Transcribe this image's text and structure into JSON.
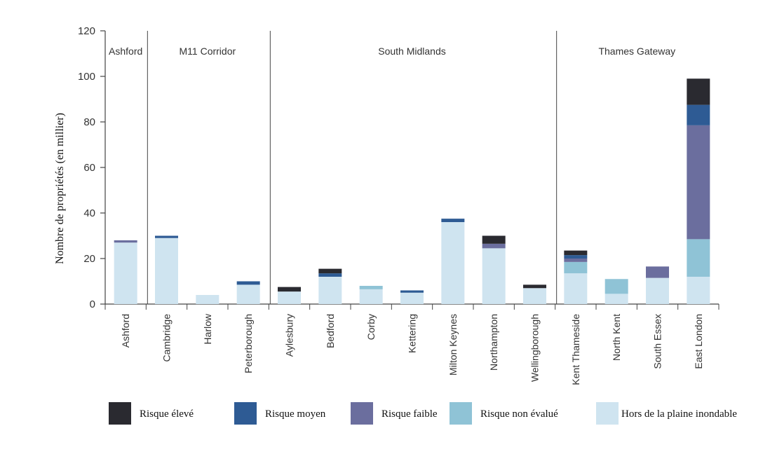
{
  "chart_data": {
    "type": "bar",
    "stacked": true,
    "ylabel": "Nombre de propriétés (en millier)",
    "xlabel": "",
    "ylim": [
      0,
      120
    ],
    "yticks": [
      0,
      20,
      40,
      60,
      80,
      100,
      120
    ],
    "grid": false,
    "legend_position": "bottom",
    "categories": [
      "Ashford",
      "Cambridge",
      "Harlow",
      "Peterborough",
      "Aylesbury",
      "Bedford",
      "Corby",
      "Kettering",
      "Milton Keynes",
      "Northampton",
      "Wellingborough",
      "Kent Thameside",
      "North Kent",
      "South Essex",
      "East London"
    ],
    "groups": [
      {
        "label": "Ashford",
        "start": 0,
        "end": 0
      },
      {
        "label": "M11 Corridor",
        "start": 1,
        "end": 3
      },
      {
        "label": "South Midlands",
        "start": 4,
        "end": 10
      },
      {
        "label": "Thames Gateway",
        "start": 11,
        "end": 14
      }
    ],
    "series": [
      {
        "name": "Hors de la plaine inondable",
        "color": "#cfe4f0",
        "values": [
          27,
          29,
          4,
          8.5,
          5.5,
          12,
          6.5,
          5,
          36,
          24.5,
          7,
          13.5,
          4.5,
          11.5,
          12
        ]
      },
      {
        "name": "Risque non évalué",
        "color": "#8fc3d6",
        "values": [
          0,
          0,
          0,
          0,
          0,
          0,
          1.5,
          0,
          0,
          0,
          0,
          5,
          6.5,
          0,
          16.5
        ]
      },
      {
        "name": "Risque faible",
        "color": "#6b6e9e",
        "values": [
          1,
          0,
          0,
          0,
          0,
          0,
          0,
          0,
          0,
          2,
          0,
          1.5,
          0,
          5,
          50
        ]
      },
      {
        "name": "Risque moyen",
        "color": "#2e5b94",
        "values": [
          0,
          1,
          0,
          1.5,
          0,
          1.5,
          0,
          1,
          1.5,
          0,
          0,
          1.5,
          0,
          0,
          9
        ]
      },
      {
        "name": "Risque élevé",
        "color": "#2a2a30",
        "values": [
          0,
          0,
          0,
          0,
          2,
          2,
          0,
          0,
          0,
          3.5,
          1.5,
          2,
          0,
          0,
          11.5
        ]
      }
    ],
    "legend_order": [
      "Risque élevé",
      "Risque moyen",
      "Risque faible",
      "Risque non évalué",
      "Hors de la plaine inondable"
    ]
  }
}
